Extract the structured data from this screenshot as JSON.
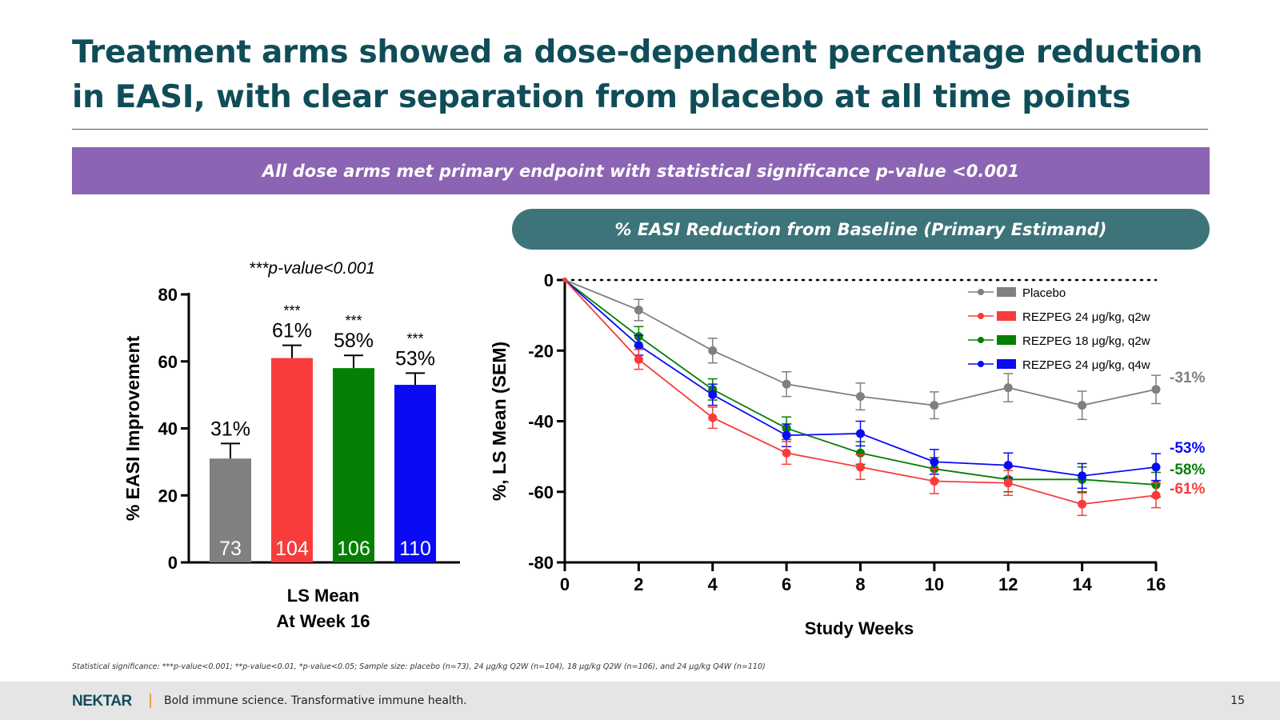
{
  "slide": {
    "title": "Treatment arms showed a dose-dependent percentage reduction in EASI, with clear separation from placebo at all time points",
    "banner": "All dose arms met primary endpoint with statistical significance p-value <0.001",
    "pill": "% EASI Reduction from Baseline (Primary Estimand)",
    "footnote": "Statistical significance: ***p-value<0.001; **p-value<0.01, *p-value<0.05; Sample size: placebo (n=73), 24 μg/kg Q2W (n=104), 18 μg/kg Q2W (n=106), and 24 μg/kg Q4W (n=110)",
    "footer_logo": "NEKTAR",
    "footer_tagline": "Bold immune science. Transformative immune health.",
    "page_number": "15"
  },
  "colors": {
    "title": "#0f4d58",
    "banner": "#8b64b4",
    "pill": "#3d7479",
    "placebo": "#808080",
    "q2w24": "#f83c3c",
    "q2w18": "#058005",
    "q4w24": "#0a0af5"
  },
  "chart_data": [
    {
      "type": "bar",
      "title": "",
      "annotation": "***p-value<0.001",
      "ylabel": "% EASI Improvement",
      "xlabel": "LS Mean At Week 16",
      "xlabel_lines": [
        "LS Mean",
        "At Week 16"
      ],
      "ylim": [
        0,
        80
      ],
      "yticks": [
        0,
        20,
        40,
        60,
        80
      ],
      "bars": [
        {
          "value": 31,
          "error": 4.5,
          "label": "31%",
          "n": "73",
          "sig": "",
          "color": "#808080"
        },
        {
          "value": 61,
          "error": 3.8,
          "label": "61%",
          "n": "104",
          "sig": "***",
          "color": "#f83c3c"
        },
        {
          "value": 58,
          "error": 3.8,
          "label": "58%",
          "n": "106",
          "sig": "***",
          "color": "#058005"
        },
        {
          "value": 53,
          "error": 3.5,
          "label": "53%",
          "n": "110",
          "sig": "***",
          "color": "#0a0af5"
        }
      ]
    },
    {
      "type": "line",
      "title": "",
      "ylabel": "%, LS Mean (SEM)",
      "xlabel": "Study Weeks",
      "xlim": [
        0,
        16
      ],
      "ylim": [
        -80,
        0
      ],
      "xticks": [
        0,
        2,
        4,
        6,
        8,
        10,
        12,
        14,
        16
      ],
      "yticks": [
        0,
        -20,
        -40,
        -60,
        -80
      ],
      "reference_line_y": 0,
      "legend_position": "top-right",
      "x": [
        0,
        2,
        4,
        6,
        8,
        10,
        12,
        14,
        16
      ],
      "series": [
        {
          "name": "Placebo",
          "color": "#808080",
          "end_label": "-31%",
          "values": [
            0,
            -8.5,
            -20,
            -29.5,
            -33,
            -35.5,
            -30.5,
            -35.5,
            -31
          ],
          "sem": [
            0,
            3,
            3.5,
            3.5,
            3.8,
            3.8,
            4,
            4,
            4
          ]
        },
        {
          "name": "REZPEG 24 μg/kg, q2w",
          "color": "#f83c3c",
          "end_label": "-61%",
          "values": [
            0,
            -22.5,
            -39,
            -49,
            -53,
            -57,
            -57.5,
            -63.5,
            -61
          ],
          "sem": [
            0,
            2.8,
            3,
            3.2,
            3.5,
            3.5,
            3.5,
            3.2,
            3.5
          ]
        },
        {
          "name": "REZPEG 18 μg/kg, q2w",
          "color": "#058005",
          "end_label": "-58%",
          "values": [
            0,
            -16,
            -31,
            -42,
            -49,
            -53.5,
            -56.5,
            -56.5,
            -58
          ],
          "sem": [
            0,
            2.8,
            3,
            3.2,
            3.2,
            3.2,
            3.5,
            3.5,
            3.5
          ]
        },
        {
          "name": "REZPEG 24 μg/kg, q4w",
          "color": "#0a0af5",
          "end_label": "-53%",
          "values": [
            0,
            -18.5,
            -32.5,
            -44,
            -43.5,
            -51.5,
            -52.5,
            -55.5,
            -53
          ],
          "sem": [
            0,
            2.8,
            3,
            3.2,
            3.5,
            3.5,
            3.5,
            3.5,
            3.8
          ]
        }
      ]
    }
  ]
}
